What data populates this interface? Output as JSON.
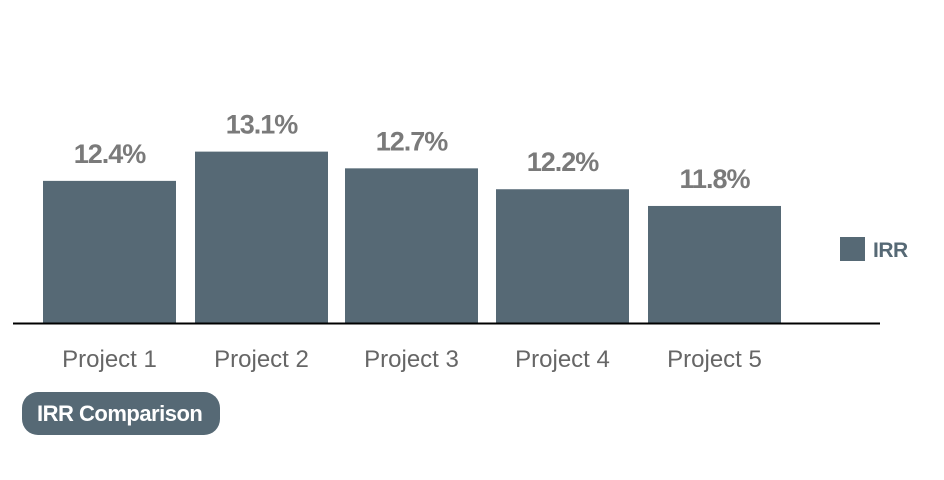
{
  "chart_data": {
    "type": "bar",
    "title": "IRR Comparison",
    "categories": [
      "Project 1",
      "Project 2",
      "Project 3",
      "Project 4",
      "Project 5"
    ],
    "series": [
      {
        "name": "IRR",
        "values": [
          12.4,
          13.1,
          12.7,
          12.2,
          11.8
        ],
        "labels": [
          "12.4%",
          "13.1%",
          "12.7%",
          "12.2%",
          "11.8%"
        ]
      }
    ],
    "ylim": [
      9.0,
      13.5
    ],
    "grid": false,
    "legend_position": "right",
    "xlabel": "",
    "ylabel": ""
  },
  "colors": {
    "bar": "#566975",
    "data_label": "#7a7a7a",
    "tick_label": "#666666",
    "axis": "#000000",
    "title_pill_bg": "#566975",
    "legend_text": "#566975"
  }
}
